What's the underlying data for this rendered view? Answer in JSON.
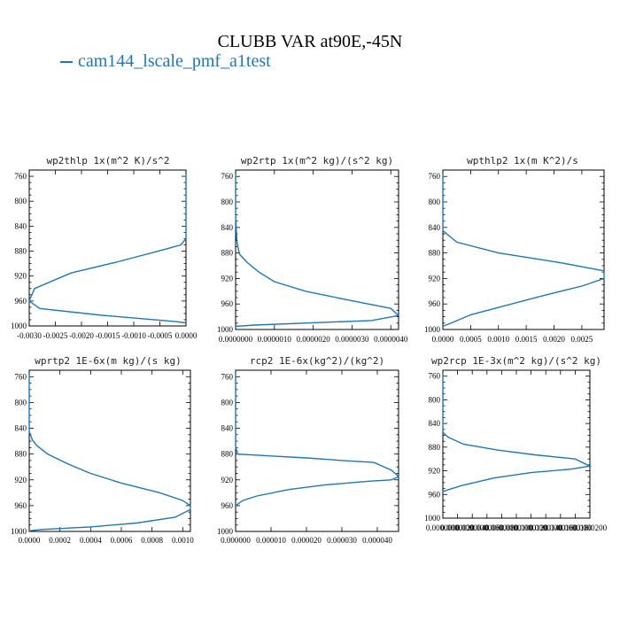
{
  "figure": {
    "title": "CLUBB VAR at90E,-45N",
    "legend": {
      "label": "cam144_lscale_pmf_a1test",
      "color": "#1f77b4"
    }
  },
  "chart_data": [
    {
      "type": "line",
      "title": "wp2thlp  1x(m^2 K)/s^2",
      "xlim": [
        -0.003,
        0.0
      ],
      "ylim": [
        1000,
        750
      ],
      "x_ticks": [
        "-0.0030",
        "-0.0025",
        "-0.0020",
        "-0.0015",
        "-0.0010",
        "-0.0005",
        "0.0000"
      ],
      "x_tick_values": [
        -0.003,
        -0.0025,
        -0.002,
        -0.0015,
        -0.001,
        -0.0005,
        0.0
      ],
      "y_ticks": [
        "760",
        "800",
        "840",
        "880",
        "920",
        "960",
        "1000"
      ],
      "y_tick_values": [
        760,
        800,
        840,
        880,
        920,
        960,
        1000
      ],
      "series": [
        {
          "color": "#1f77b4",
          "x": [
            0.0,
            0.0,
            0.0,
            0.0,
            0.0,
            -0.0001,
            -0.0004,
            -0.0013,
            -0.0022,
            -0.0029,
            -0.003,
            -0.0028,
            -0.0016,
            -0.0002,
            0.0
          ],
          "y": [
            755,
            780,
            820,
            840,
            860,
            870,
            877,
            897,
            915,
            940,
            960,
            972,
            983,
            993,
            995
          ]
        }
      ]
    },
    {
      "type": "line",
      "title": "wp2rtp  1x(m^2 kg)/(s^2 kg)",
      "xlim": [
        0.0,
        4.2e-06
      ],
      "ylim": [
        1000,
        750
      ],
      "x_ticks": [
        "0.0000000",
        "0.0000010",
        "0.0000020",
        "0.0000030",
        "0.0000040"
      ],
      "x_tick_values": [
        0.0,
        1e-06,
        2e-06,
        3e-06,
        4e-06
      ],
      "y_ticks": [
        "760",
        "800",
        "840",
        "880",
        "920",
        "960",
        "1000"
      ],
      "y_tick_values": [
        760,
        800,
        840,
        880,
        920,
        960,
        1000
      ],
      "series": [
        {
          "color": "#1f77b4",
          "x": [
            0.0,
            0.0,
            3e-08,
            6e-08,
            1e-07,
            3e-07,
            6e-07,
            1e-06,
            1.8e-06,
            3e-06,
            4e-06,
            4.2e-06,
            3.5e-06,
            5e-07,
            0.0
          ],
          "y": [
            755,
            820,
            860,
            870,
            882,
            895,
            910,
            925,
            940,
            955,
            967,
            978,
            986,
            993,
            995
          ]
        }
      ]
    },
    {
      "type": "line",
      "title": "wpthlp2  1x(m K^2)/s",
      "xlim": [
        0.0,
        0.0029
      ],
      "ylim": [
        1000,
        750
      ],
      "x_ticks": [
        "0.0000",
        "0.0005",
        "0.0010",
        "0.0015",
        "0.0020",
        "0.0025"
      ],
      "x_tick_values": [
        0.0,
        0.0005,
        0.001,
        0.0015,
        0.002,
        0.0025
      ],
      "y_ticks": [
        "760",
        "800",
        "840",
        "880",
        "920",
        "960",
        "1000"
      ],
      "y_tick_values": [
        760,
        800,
        840,
        880,
        920,
        960,
        1000
      ],
      "series": [
        {
          "color": "#1f77b4",
          "x": [
            0.0,
            0.0,
            0.0,
            0.00025,
            0.001,
            0.0021,
            0.0029,
            0.0029,
            0.0025,
            0.0018,
            0.0011,
            0.0005,
            0.0002,
            0.0
          ],
          "y": [
            755,
            820,
            845,
            863,
            880,
            895,
            908,
            920,
            932,
            947,
            963,
            977,
            988,
            995
          ]
        }
      ]
    },
    {
      "type": "line",
      "title": "wprtp2  1E-6x(m kg)/(s kg)",
      "xlim": [
        0.0,
        0.00105
      ],
      "ylim": [
        1000,
        750
      ],
      "x_ticks": [
        "0.0000",
        "0.0002",
        "0.0004",
        "0.0006",
        "0.0008",
        "0.0010"
      ],
      "x_tick_values": [
        0.0,
        0.0002,
        0.0004,
        0.0006,
        0.0008,
        0.001
      ],
      "y_ticks": [
        "760",
        "800",
        "840",
        "880",
        "920",
        "960",
        "1000"
      ],
      "y_tick_values": [
        760,
        800,
        840,
        880,
        920,
        960,
        1000
      ],
      "series": [
        {
          "color": "#1f77b4",
          "x": [
            0.0,
            0.0,
            0.0,
            2e-05,
            5e-05,
            0.00012,
            0.00025,
            0.0004,
            0.0006,
            0.00085,
            0.001,
            0.00105,
            0.00105,
            0.00095,
            0.0007,
            0.0004,
            8e-05,
            0.0
          ],
          "y": [
            755,
            800,
            845,
            858,
            867,
            880,
            895,
            910,
            925,
            940,
            952,
            960,
            966,
            978,
            987,
            993,
            997,
            999
          ]
        }
      ]
    },
    {
      "type": "line",
      "title": "rcp2  1E-6x(kg^2)/(kg^2)",
      "xlim": [
        0.0,
        4.6e-05
      ],
      "ylim": [
        1000,
        750
      ],
      "x_ticks": [
        "0.000000",
        "0.000010",
        "0.000020",
        "0.000030",
        "0.000040"
      ],
      "x_tick_values": [
        0.0,
        1e-05,
        2e-05,
        3e-05,
        4e-05
      ],
      "y_ticks": [
        "760",
        "800",
        "840",
        "880",
        "920",
        "960",
        "1000"
      ],
      "y_tick_values": [
        760,
        800,
        840,
        880,
        920,
        960,
        1000
      ],
      "series": [
        {
          "color": "#1f77b4",
          "x": [
            0.0,
            0.0,
            0.0,
            5e-07,
            2e-07,
            1e-05,
            2e-05,
            3e-05,
            3.9e-05,
            4.4e-05,
            4.6e-05,
            4.4e-05,
            3.8e-05,
            2.5e-05,
            1.5e-05,
            6e-06,
            2e-06,
            0.0
          ],
          "y": [
            755,
            820,
            870,
            877,
            880,
            883,
            886,
            890,
            893,
            905,
            915,
            920,
            922,
            928,
            935,
            945,
            952,
            960
          ]
        }
      ]
    },
    {
      "type": "line",
      "title": "wp2rcp  1E-3x(m^2 kg)/(s^2 kg)",
      "xlim": [
        0.0,
        2e-05
      ],
      "ylim": [
        1000,
        750
      ],
      "x_ticks": [
        "0.0000000",
        "0.0000020",
        "0.0000040",
        "0.0000060",
        "0.0000080",
        "0.0000100",
        "0.0000120",
        "0.0000140",
        "0.0000160",
        "0.0000180",
        "0.0000200"
      ],
      "x_tick_values": [
        0.0,
        2e-06,
        4e-06,
        6e-06,
        8e-06,
        1e-05,
        1.2e-05,
        1.4e-05,
        1.6e-05,
        1.8e-05,
        2e-05
      ],
      "y_ticks": [
        "760",
        "800",
        "840",
        "880",
        "920",
        "960",
        "1000"
      ],
      "y_tick_values": [
        760,
        800,
        840,
        880,
        920,
        960,
        1000
      ],
      "series": [
        {
          "color": "#1f77b4",
          "x": [
            0.0,
            0.0,
            0.0,
            7e-07,
            2.8e-06,
            7.5e-06,
            1.25e-05,
            1.8e-05,
            2e-05,
            1.75e-05,
            1.2e-05,
            7e-06,
            2.5e-06,
            0.0
          ],
          "y": [
            755,
            820,
            855,
            863,
            875,
            885,
            893,
            900,
            912,
            917,
            923,
            932,
            945,
            955
          ]
        }
      ]
    }
  ]
}
